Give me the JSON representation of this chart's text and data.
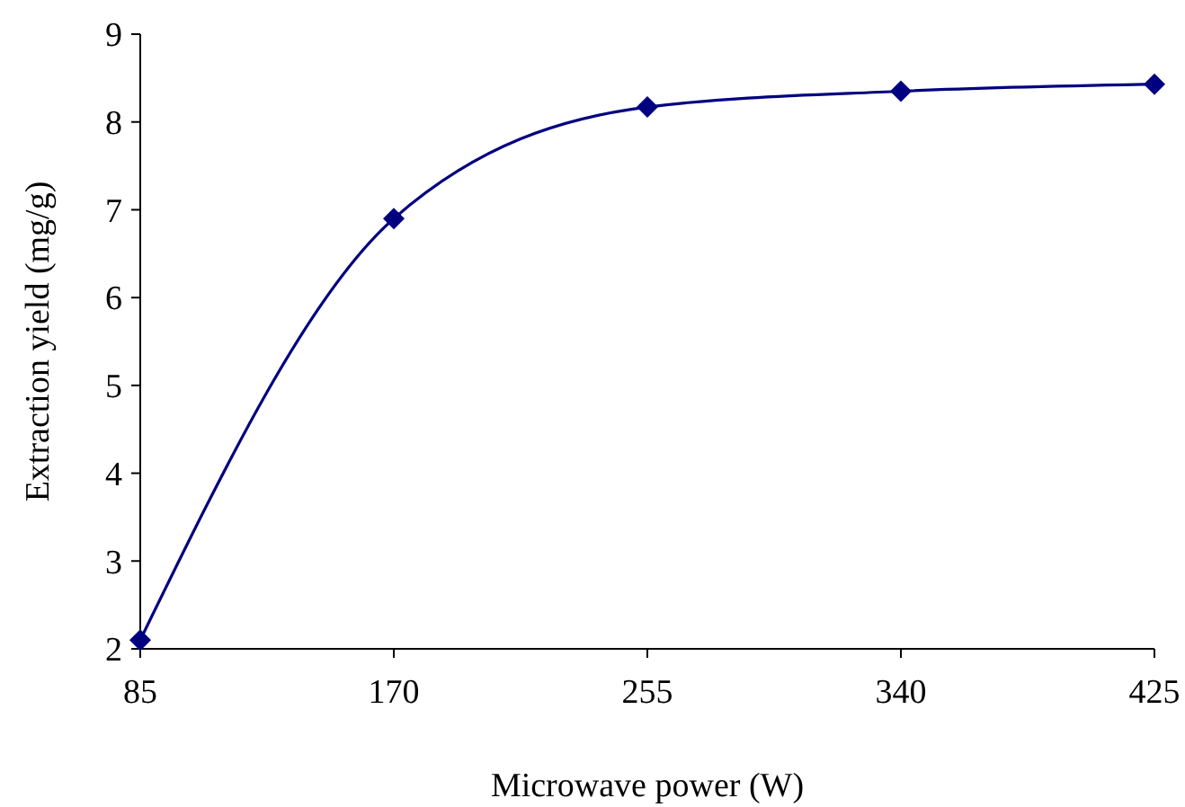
{
  "chart_data": {
    "type": "line",
    "xlabel": "Microwave power (W)",
    "ylabel": "Extraction yield (mg/g)",
    "x": [
      85,
      170,
      255,
      340,
      425
    ],
    "series": [
      {
        "color": "#000080",
        "values": [
          2.1,
          6.9,
          8.17,
          8.35,
          8.43
        ]
      }
    ],
    "xlim": [
      85,
      425
    ],
    "xticks": [
      85,
      170,
      255,
      340,
      425
    ],
    "ylim": [
      2,
      9
    ],
    "yticks": [
      2,
      3,
      4,
      5,
      6,
      7,
      8,
      9
    ],
    "marker": "diamond",
    "line_style": "solid"
  }
}
